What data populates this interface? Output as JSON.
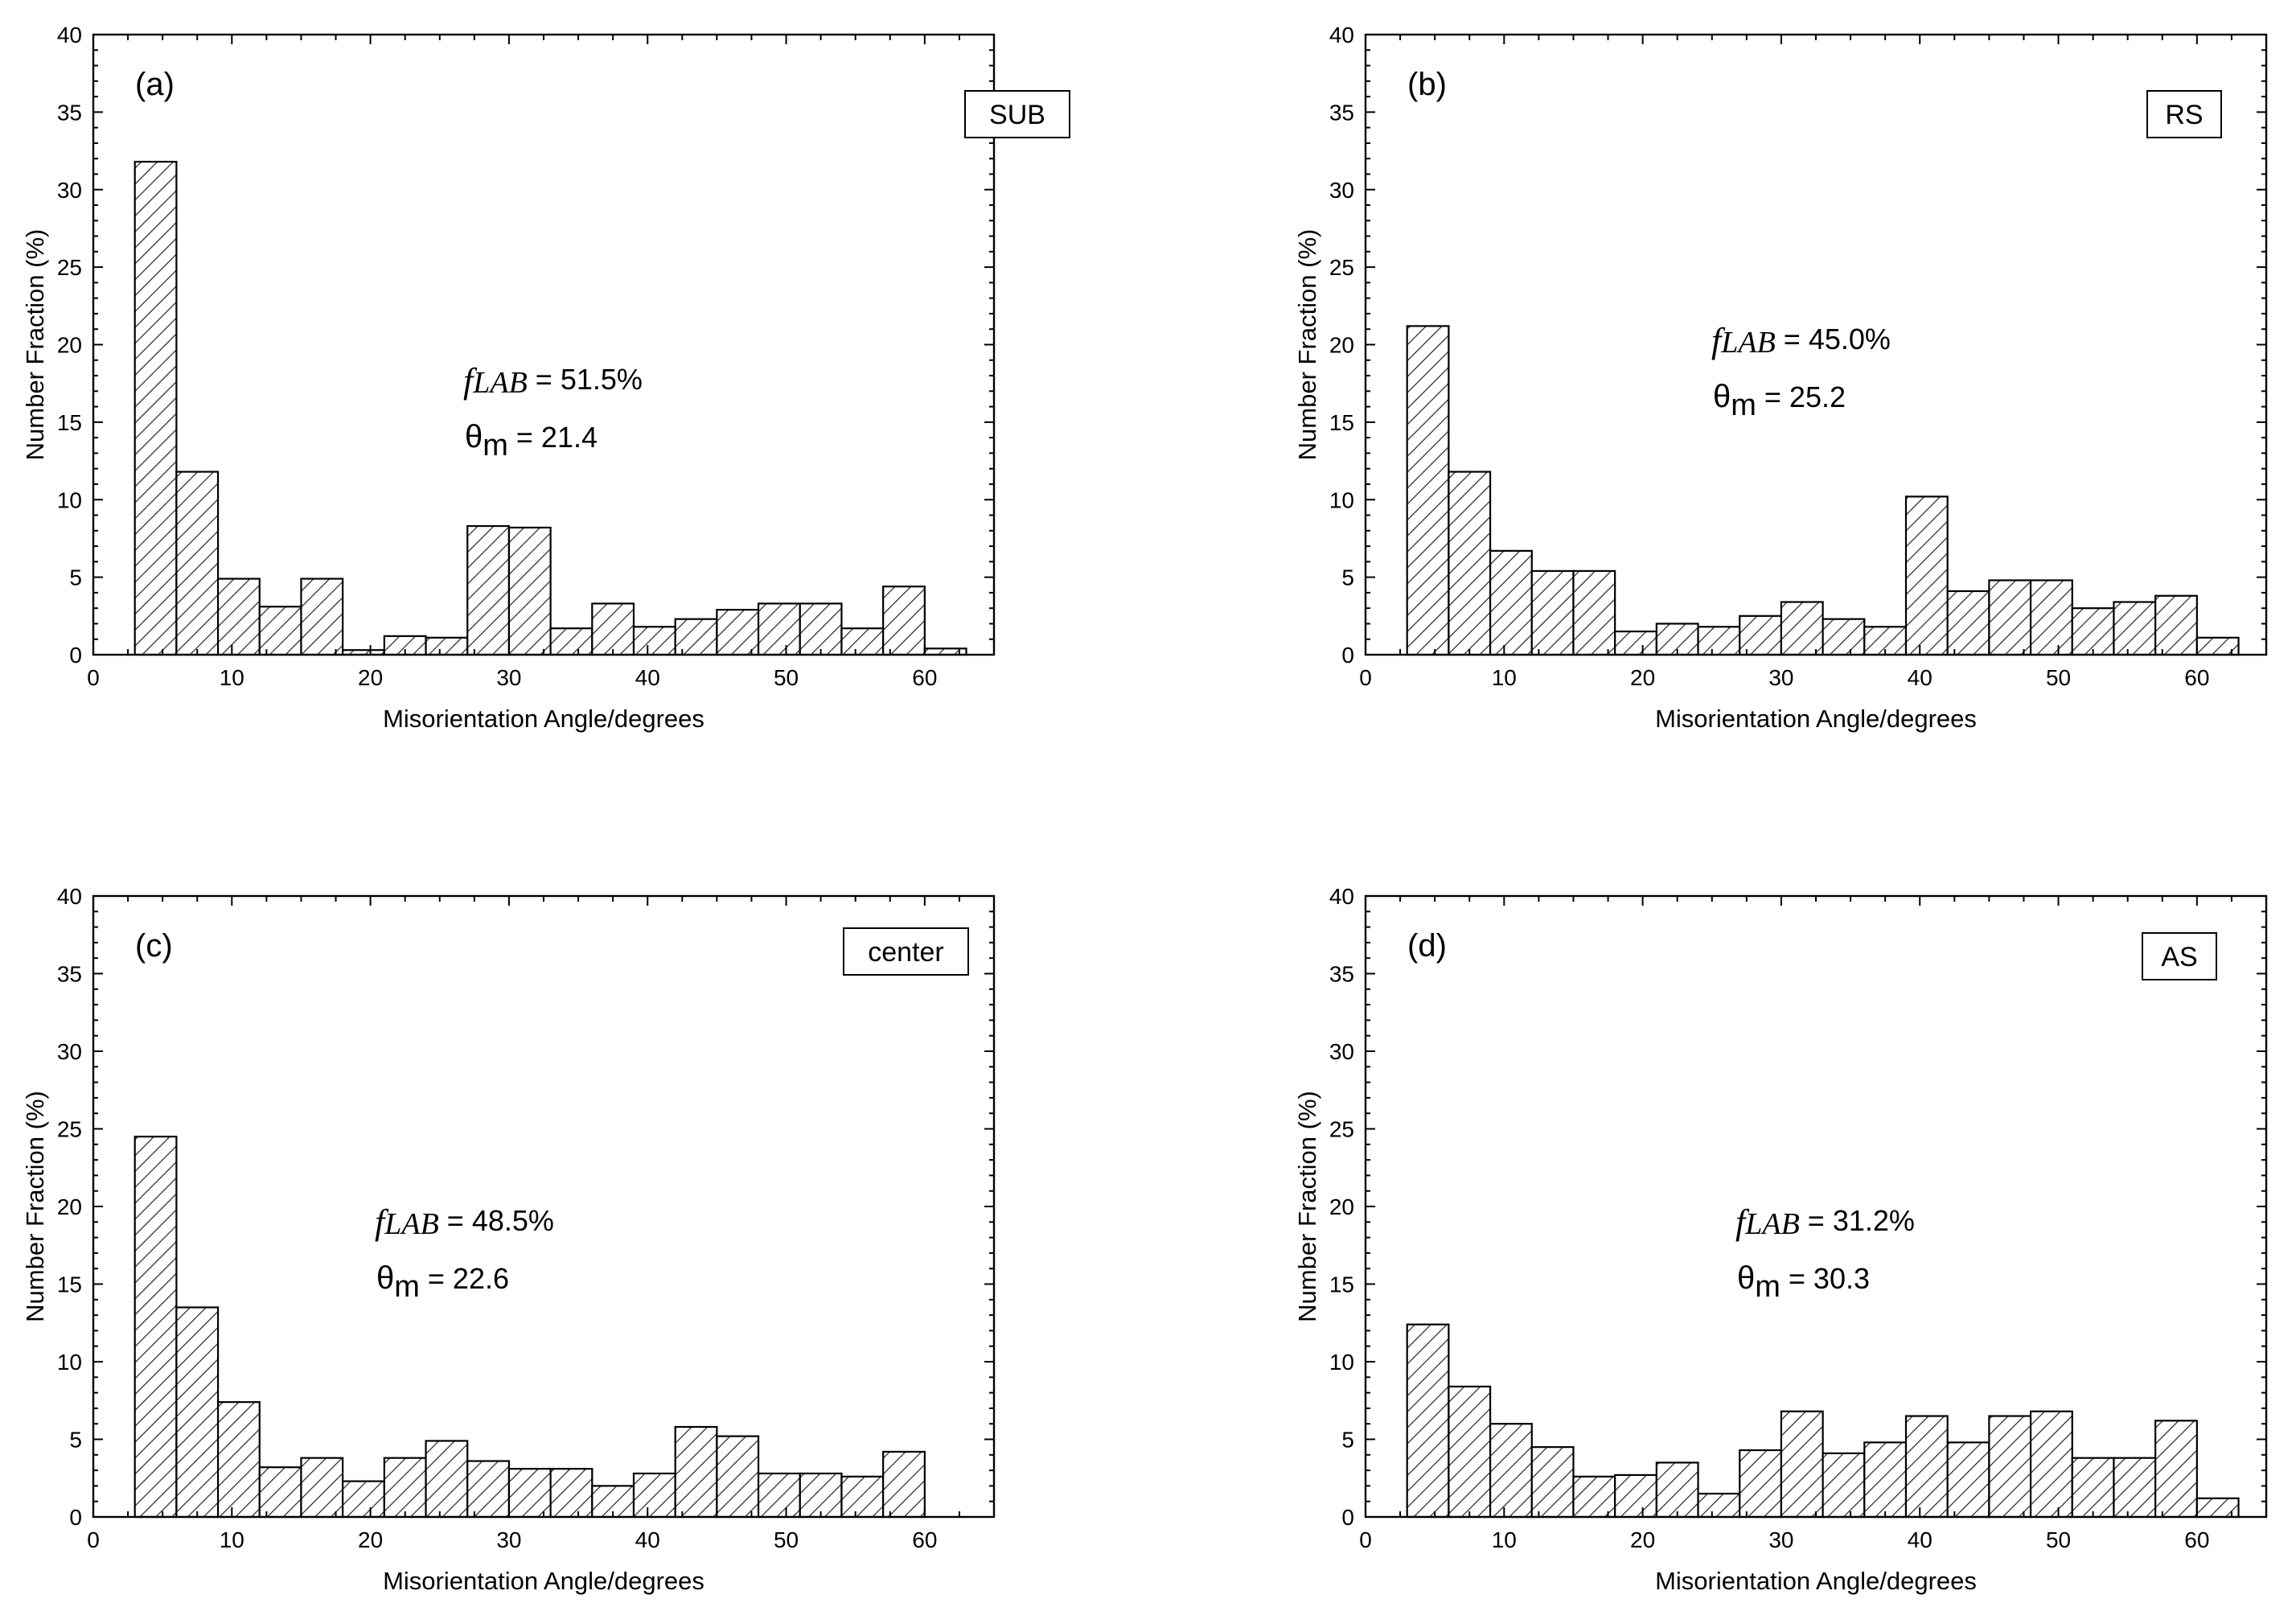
{
  "figure": {
    "bar_fill_pattern": "diagonal-hatch",
    "colors": {
      "line": "#000000",
      "hatch": "#222222",
      "background": "#ffffff"
    }
  },
  "chart_data": [
    {
      "type": "bar",
      "panel_label": "(a)",
      "sample_label": "SUB",
      "xlabel": "Misorientation Angle/degrees",
      "ylabel": "Number Fraction (%)",
      "xlim": [
        0,
        65
      ],
      "ylim": [
        0,
        40
      ],
      "xticks": [
        0,
        10,
        20,
        30,
        40,
        50,
        60
      ],
      "yticks": [
        0,
        5,
        10,
        15,
        20,
        25,
        30,
        35,
        40
      ],
      "bin_width": 3,
      "bin_start": 3,
      "values": [
        31.8,
        11.8,
        4.9,
        3.1,
        4.9,
        0.3,
        1.2,
        1.1,
        8.3,
        8.2,
        1.7,
        3.3,
        1.8,
        2.3,
        2.9,
        3.3,
        3.3,
        1.7,
        4.4,
        0.4
      ],
      "annotation": {
        "flab_symbol": "fLAB",
        "flab_text": " = 51.5%",
        "theta_symbol": "θm",
        "theta_text": " = 21.4"
      }
    },
    {
      "type": "bar",
      "panel_label": "(b)",
      "sample_label": "RS",
      "xlabel": "Misorientation Angle/degrees",
      "ylabel": "Number Fraction (%)",
      "xlim": [
        0,
        65
      ],
      "ylim": [
        0,
        40
      ],
      "xticks": [
        0,
        10,
        20,
        30,
        40,
        50,
        60
      ],
      "yticks": [
        0,
        5,
        10,
        15,
        20,
        25,
        30,
        35,
        40
      ],
      "bin_width": 3,
      "bin_start": 3,
      "values": [
        21.2,
        11.8,
        6.7,
        5.4,
        5.4,
        1.5,
        2.0,
        1.8,
        2.5,
        3.4,
        2.3,
        1.8,
        10.2,
        4.1,
        4.8,
        4.8,
        3.0,
        3.4,
        3.8,
        1.1
      ],
      "annotation": {
        "flab_symbol": "fLAB",
        "flab_text": " = 45.0%",
        "theta_symbol": "θm",
        "theta_text": " = 25.2"
      }
    },
    {
      "type": "bar",
      "panel_label": "(c)",
      "sample_label": "center",
      "xlabel": "Misorientation Angle/degrees",
      "ylabel": "Number Fraction (%)",
      "xlim": [
        0,
        65
      ],
      "ylim": [
        0,
        40
      ],
      "xticks": [
        0,
        10,
        20,
        30,
        40,
        50,
        60
      ],
      "yticks": [
        0,
        5,
        10,
        15,
        20,
        25,
        30,
        35,
        40
      ],
      "bin_width": 3,
      "bin_start": 3,
      "values": [
        24.5,
        13.5,
        7.4,
        3.2,
        3.8,
        2.3,
        3.8,
        4.9,
        3.6,
        3.1,
        3.1,
        2.0,
        2.8,
        5.8,
        5.2,
        2.8,
        2.8,
        2.6,
        4.2
      ],
      "annotation": {
        "flab_symbol": "fLAB",
        "flab_text": " = 48.5%",
        "theta_symbol": "θm",
        "theta_text": " = 22.6"
      }
    },
    {
      "type": "bar",
      "panel_label": "(d)",
      "sample_label": "AS",
      "xlabel": "Misorientation Angle/degrees",
      "ylabel": "Number Fraction (%)",
      "xlim": [
        0,
        65
      ],
      "ylim": [
        0,
        40
      ],
      "xticks": [
        0,
        10,
        20,
        30,
        40,
        50,
        60
      ],
      "yticks": [
        0,
        5,
        10,
        15,
        20,
        25,
        30,
        35,
        40
      ],
      "bin_width": 3,
      "bin_start": 3,
      "values": [
        12.4,
        8.4,
        6.0,
        4.5,
        2.6,
        2.7,
        3.5,
        1.5,
        4.3,
        6.8,
        4.1,
        4.8,
        6.5,
        4.8,
        6.5,
        6.8,
        3.8,
        3.8,
        6.2,
        1.2
      ],
      "annotation": {
        "flab_symbol": "fLAB",
        "flab_text": " = 31.2%",
        "theta_symbol": "θm",
        "theta_text": " = 30.3"
      }
    }
  ]
}
